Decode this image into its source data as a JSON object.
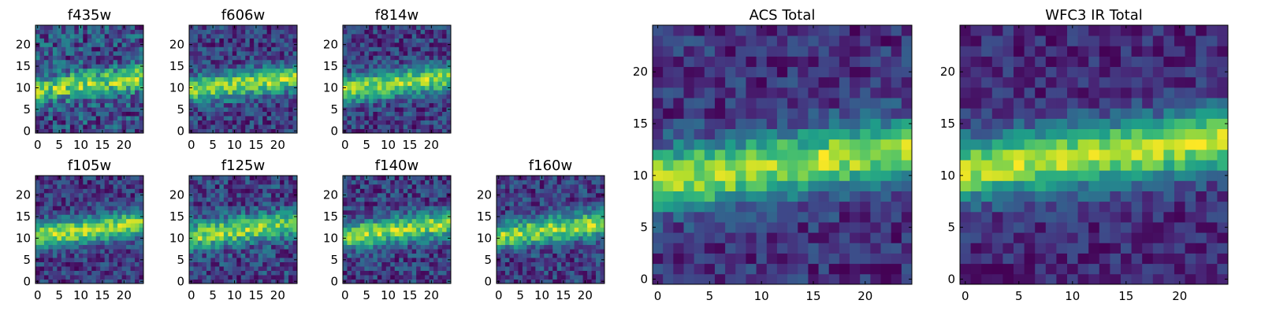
{
  "chart_data": [
    {
      "type": "heatmap",
      "title": "f435w",
      "grid_size": 25,
      "pattern": "noisy-band",
      "band_center_row": 11,
      "noise": 0.55,
      "seed": 11,
      "x_ticks": [
        "0",
        "5",
        "10",
        "15",
        "20"
      ],
      "y_ticks": [
        "0",
        "5",
        "10",
        "15",
        "20"
      ]
    },
    {
      "type": "heatmap",
      "title": "f606w",
      "grid_size": 25,
      "pattern": "noisy-band",
      "band_center_row": 11,
      "noise": 0.35,
      "seed": 23,
      "x_ticks": [
        "0",
        "5",
        "10",
        "15",
        "20"
      ],
      "y_ticks": [
        "0",
        "5",
        "10",
        "15",
        "20"
      ]
    },
    {
      "type": "heatmap",
      "title": "f814w",
      "grid_size": 25,
      "pattern": "noisy-band",
      "band_center_row": 11,
      "noise": 0.35,
      "seed": 37,
      "x_ticks": [
        "0",
        "5",
        "10",
        "15",
        "20"
      ],
      "y_ticks": [
        "0",
        "5",
        "10",
        "15",
        "20"
      ]
    },
    {
      "type": "heatmap",
      "title": "f105w",
      "grid_size": 25,
      "pattern": "noisy-band",
      "band_center_row": 12,
      "noise": 0.3,
      "seed": 41,
      "x_ticks": [
        "0",
        "5",
        "10",
        "15",
        "20"
      ],
      "y_ticks": [
        "0",
        "5",
        "10",
        "15",
        "20"
      ]
    },
    {
      "type": "heatmap",
      "title": "f125w",
      "grid_size": 25,
      "pattern": "noisy-band",
      "band_center_row": 12,
      "noise": 0.4,
      "seed": 53,
      "x_ticks": [
        "0",
        "5",
        "10",
        "15",
        "20"
      ],
      "y_ticks": [
        "0",
        "5",
        "10",
        "15",
        "20"
      ]
    },
    {
      "type": "heatmap",
      "title": "f140w",
      "grid_size": 25,
      "pattern": "noisy-band",
      "band_center_row": 12,
      "noise": 0.35,
      "seed": 67,
      "x_ticks": [
        "0",
        "5",
        "10",
        "15",
        "20"
      ],
      "y_ticks": [
        "0",
        "5",
        "10",
        "15",
        "20"
      ]
    },
    {
      "type": "heatmap",
      "title": "f160w",
      "grid_size": 25,
      "pattern": "noisy-band",
      "band_center_row": 12,
      "noise": 0.35,
      "seed": 79,
      "x_ticks": [
        "0",
        "5",
        "10",
        "15",
        "20"
      ],
      "y_ticks": [
        "0",
        "5",
        "10",
        "15",
        "20"
      ]
    },
    {
      "type": "heatmap",
      "title": "ACS Total",
      "grid_size": 25,
      "pattern": "noisy-band",
      "band_center_row": 11,
      "noise": 0.25,
      "seed": 83,
      "x_ticks": [
        "0",
        "5",
        "10",
        "15",
        "20"
      ],
      "y_ticks": [
        "0",
        "5",
        "10",
        "15",
        "20"
      ]
    },
    {
      "type": "heatmap",
      "title": "WFC3 IR Total",
      "grid_size": 25,
      "pattern": "noisy-band",
      "band_center_row": 12,
      "noise": 0.2,
      "seed": 97,
      "x_ticks": [
        "0",
        "5",
        "10",
        "15",
        "20"
      ],
      "y_ticks": [
        "0",
        "5",
        "10",
        "15",
        "20"
      ]
    }
  ],
  "colors": {
    "colormap": "viridis",
    "stops": [
      "#440154",
      "#482878",
      "#3e4989",
      "#31688e",
      "#26828e",
      "#1f9e89",
      "#35b779",
      "#6ece58",
      "#b5de2b",
      "#fde725"
    ],
    "axes_frame": "#000000"
  }
}
